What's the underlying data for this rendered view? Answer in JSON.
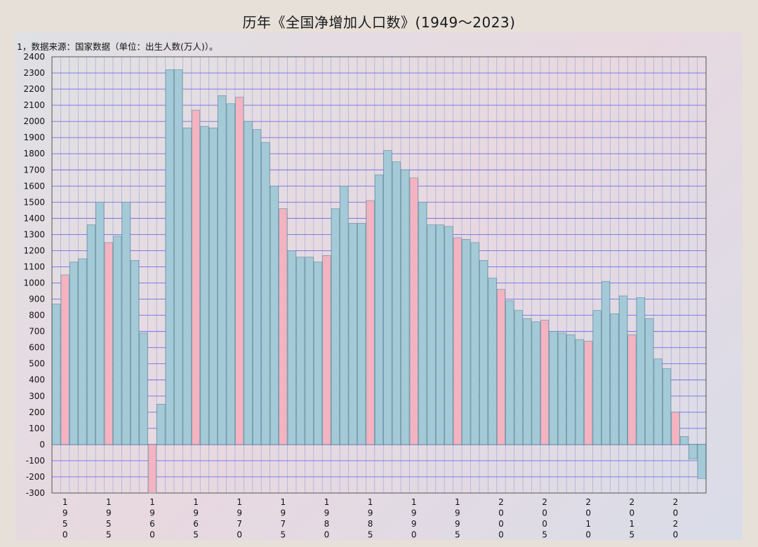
{
  "title": "历年《全国净增加人口数》(1949～2023)",
  "subtitle": "1，数据来源：国家数据（单位：出生人数(万人)）。",
  "colors": {
    "bar_normal": "#a3cad6",
    "bar_highlight": "#f3b3c0",
    "bar_stroke": "#5f8f9c",
    "grid_major": "#6f6fe6",
    "grid_minor": "#a9a9d4",
    "background": "#e6e0d9"
  },
  "chart_data": {
    "type": "bar",
    "title": "历年《全国净增加人口数》(1949～2023)",
    "xlabel": "",
    "ylabel": "",
    "ylim": [
      -300,
      2400
    ],
    "grid": true,
    "x_tick_labels": [
      "1950",
      "1955",
      "1960",
      "1965",
      "1970",
      "1975",
      "1980",
      "1985",
      "1990",
      "1995",
      "2000",
      "2005",
      "2010",
      "2015",
      "2020"
    ],
    "y_ticks": [
      -300,
      -200,
      -100,
      0,
      100,
      200,
      300,
      400,
      500,
      600,
      700,
      800,
      900,
      1000,
      1100,
      1200,
      1300,
      1400,
      1500,
      1600,
      1700,
      1800,
      1900,
      2000,
      2100,
      2200,
      2300,
      2400
    ],
    "highlight_rule": "years ending in 0 or 5 drawn in pink",
    "categories": [
      1949,
      1950,
      1951,
      1952,
      1953,
      1954,
      1955,
      1956,
      1957,
      1958,
      1959,
      1960,
      1961,
      1962,
      1963,
      1964,
      1965,
      1966,
      1967,
      1968,
      1969,
      1970,
      1971,
      1972,
      1973,
      1974,
      1975,
      1976,
      1977,
      1978,
      1979,
      1980,
      1981,
      1982,
      1983,
      1984,
      1985,
      1986,
      1987,
      1988,
      1989,
      1990,
      1991,
      1992,
      1993,
      1994,
      1995,
      1996,
      1997,
      1998,
      1999,
      2000,
      2001,
      2002,
      2003,
      2004,
      2005,
      2006,
      2007,
      2008,
      2009,
      2010,
      2011,
      2012,
      2013,
      2014,
      2015,
      2016,
      2017,
      2018,
      2019,
      2020,
      2021,
      2022,
      2023
    ],
    "values": [
      870,
      1050,
      1130,
      1150,
      1360,
      1500,
      1250,
      1290,
      1500,
      1140,
      690,
      -300,
      250,
      2320,
      2320,
      1960,
      2070,
      1970,
      1960,
      2160,
      2110,
      2150,
      2000,
      1950,
      1870,
      1600,
      1460,
      1200,
      1160,
      1160,
      1130,
      1170,
      1460,
      1600,
      1370,
      1370,
      1510,
      1670,
      1820,
      1750,
      1700,
      1650,
      1500,
      1360,
      1360,
      1350,
      1280,
      1270,
      1250,
      1140,
      1030,
      960,
      890,
      830,
      780,
      760,
      770,
      700,
      690,
      680,
      650,
      640,
      830,
      1010,
      810,
      920,
      680,
      910,
      780,
      530,
      470,
      200,
      50,
      -90,
      -210
    ]
  }
}
